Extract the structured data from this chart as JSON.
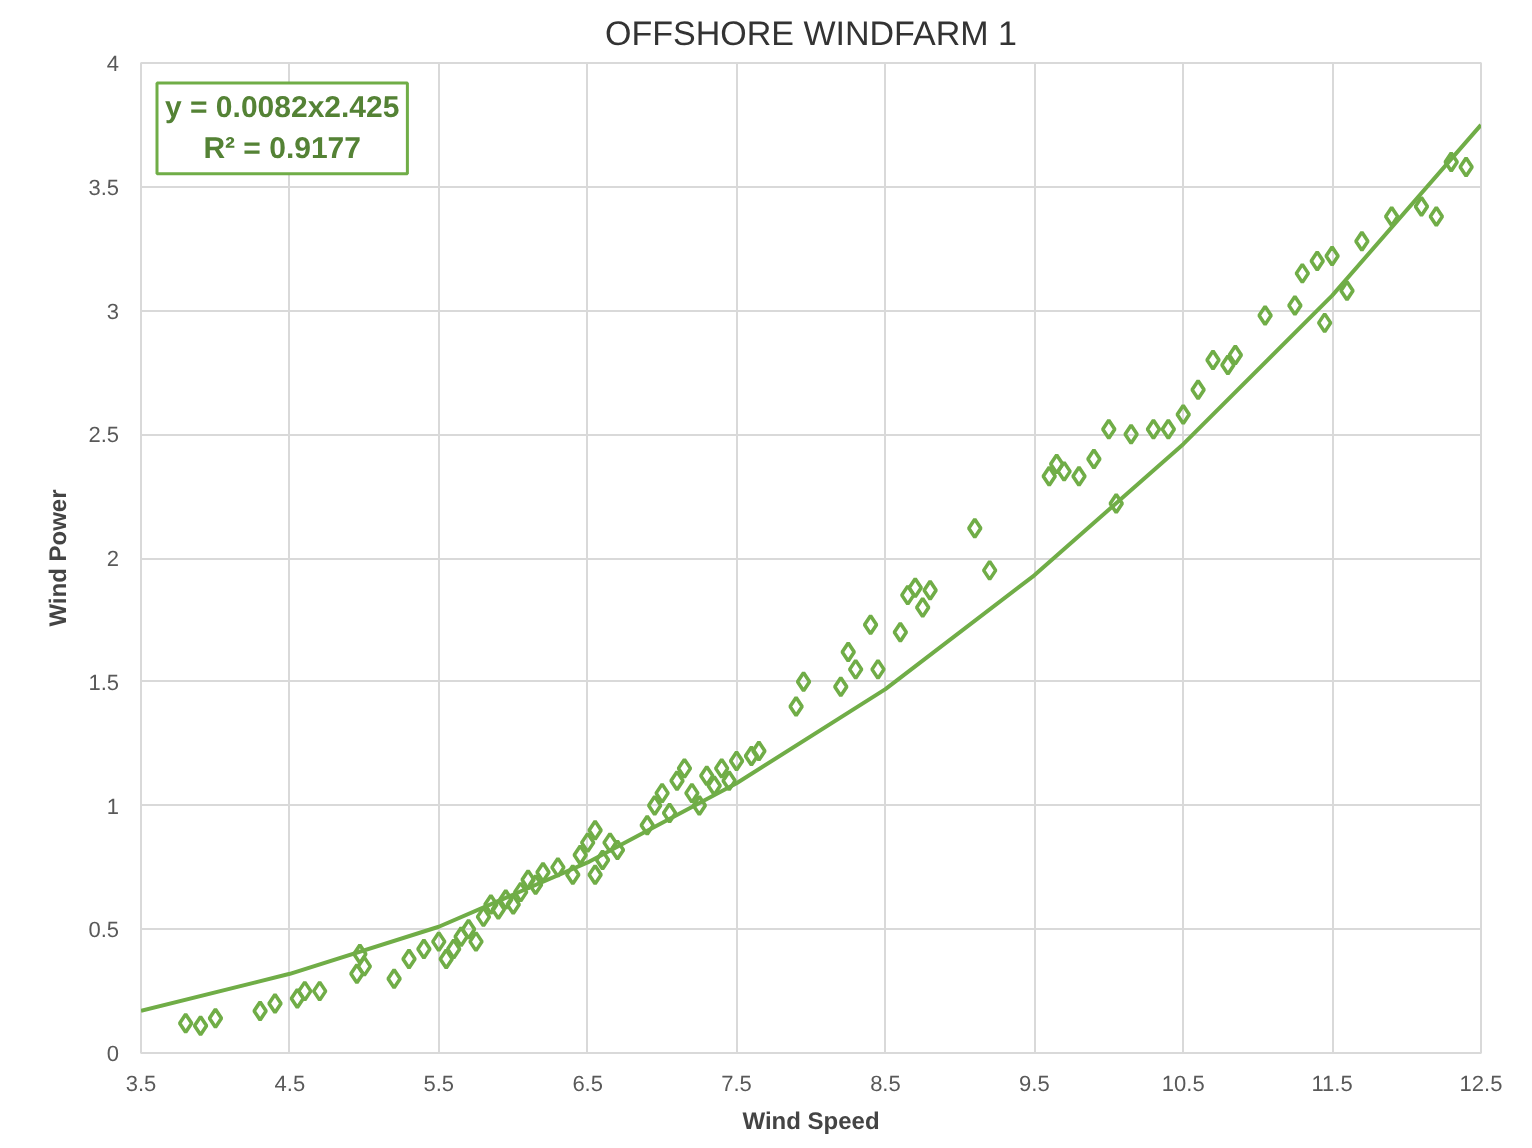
{
  "chart_data": {
    "type": "scatter",
    "title": "OFFSHORE WINDFARM 1",
    "xlabel": "Wind Speed",
    "ylabel": "Wind Power",
    "annotations": [
      "y = 0.0082x2.425",
      "R² = 0.9177"
    ],
    "xlim": [
      3.5,
      12.5
    ],
    "xticks": [
      3.5,
      4.5,
      5.5,
      6.5,
      7.5,
      8.5,
      9.5,
      10.5,
      11.5,
      12.5
    ],
    "ylim": [
      0,
      4
    ],
    "yticks": [
      0,
      0.5,
      1,
      1.5,
      2,
      2.5,
      3,
      3.5,
      4
    ],
    "grid": true,
    "marker": "diamond",
    "series": [
      {
        "color": "#70ad47",
        "x": [
          3.8,
          3.9,
          4.0,
          4.3,
          4.4,
          4.55,
          4.6,
          4.7,
          4.95,
          4.97,
          5.0,
          5.2,
          5.3,
          5.4,
          5.5,
          5.55,
          5.6,
          5.65,
          5.7,
          5.75,
          5.8,
          5.85,
          5.9,
          5.95,
          6.0,
          6.05,
          6.1,
          6.15,
          6.2,
          6.3,
          6.4,
          6.45,
          6.5,
          6.55,
          6.55,
          6.6,
          6.65,
          6.7,
          6.9,
          6.95,
          7.0,
          7.05,
          7.1,
          7.15,
          7.2,
          7.25,
          7.3,
          7.35,
          7.4,
          7.45,
          7.5,
          7.6,
          7.65,
          7.9,
          7.95,
          8.2,
          8.25,
          8.3,
          8.4,
          8.45,
          8.6,
          8.65,
          8.7,
          8.75,
          8.8,
          9.1,
          9.2,
          9.6,
          9.65,
          9.7,
          9.8,
          9.9,
          10.0,
          10.05,
          10.15,
          10.3,
          10.4,
          10.5,
          10.6,
          10.7,
          10.8,
          10.85,
          11.05,
          11.25,
          11.3,
          11.4,
          11.45,
          11.5,
          11.6,
          11.7,
          11.9,
          12.1,
          12.2,
          12.3,
          12.4
        ],
        "values": [
          0.12,
          0.11,
          0.14,
          0.17,
          0.2,
          0.22,
          0.25,
          0.25,
          0.32,
          0.4,
          0.35,
          0.3,
          0.38,
          0.42,
          0.45,
          0.38,
          0.42,
          0.47,
          0.5,
          0.45,
          0.55,
          0.6,
          0.58,
          0.62,
          0.6,
          0.65,
          0.7,
          0.68,
          0.73,
          0.75,
          0.72,
          0.8,
          0.85,
          0.9,
          0.72,
          0.78,
          0.85,
          0.82,
          0.92,
          1.0,
          1.05,
          0.97,
          1.1,
          1.15,
          1.05,
          1.0,
          1.12,
          1.08,
          1.15,
          1.1,
          1.18,
          1.2,
          1.22,
          1.4,
          1.5,
          1.48,
          1.62,
          1.55,
          1.73,
          1.55,
          1.7,
          1.85,
          1.88,
          1.8,
          1.87,
          2.12,
          1.95,
          2.33,
          2.38,
          2.35,
          2.33,
          2.4,
          2.52,
          2.22,
          2.5,
          2.52,
          2.52,
          2.58,
          2.68,
          2.8,
          2.78,
          2.82,
          2.98,
          3.02,
          3.15,
          3.2,
          2.95,
          3.22,
          3.08,
          3.28,
          3.38,
          3.42,
          3.38,
          3.6,
          3.58
        ]
      },
      {
        "type": "line",
        "color": "#70ad47",
        "marker": "none",
        "x": [
          3.5,
          4.5,
          5.5,
          6.5,
          7.5,
          8.5,
          9.5,
          10.5,
          11.5,
          12.5
        ],
        "values": [
          0.17,
          0.32,
          0.51,
          0.77,
          1.09,
          1.47,
          1.93,
          2.46,
          3.06,
          3.75
        ]
      }
    ]
  }
}
